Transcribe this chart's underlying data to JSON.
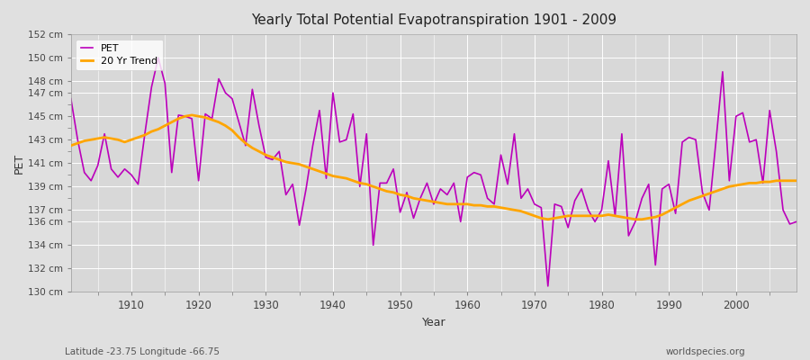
{
  "title": "Yearly Total Potential Evapotranspiration 1901 - 2009",
  "xlabel": "Year",
  "ylabel": "PET",
  "subtitle_left": "Latitude -23.75 Longitude -66.75",
  "subtitle_right": "worldspecies.org",
  "ylim": [
    130,
    152
  ],
  "xlim": [
    1901,
    2009
  ],
  "ytick_labels": [
    "130 cm",
    "132 cm",
    "134 cm",
    "136 cm",
    "137 cm",
    "139 cm",
    "141 cm",
    "143 cm",
    "145 cm",
    "147 cm",
    "148 cm",
    "150 cm",
    "152 cm"
  ],
  "ytick_values": [
    130,
    132,
    134,
    136,
    137,
    139,
    141,
    143,
    145,
    147,
    148,
    150,
    152
  ],
  "pet_color": "#bb00bb",
  "trend_color": "#ffa500",
  "bg_color": "#e0e0e0",
  "plot_bg_color": "#d8d8d8",
  "legend_labels": [
    "PET",
    "20 Yr Trend"
  ],
  "years": [
    1901,
    1902,
    1903,
    1904,
    1905,
    1906,
    1907,
    1908,
    1909,
    1910,
    1911,
    1912,
    1913,
    1914,
    1915,
    1916,
    1917,
    1918,
    1919,
    1920,
    1921,
    1922,
    1923,
    1924,
    1925,
    1926,
    1927,
    1928,
    1929,
    1930,
    1931,
    1932,
    1933,
    1934,
    1935,
    1936,
    1937,
    1938,
    1939,
    1940,
    1941,
    1942,
    1943,
    1944,
    1945,
    1946,
    1947,
    1948,
    1949,
    1950,
    1951,
    1952,
    1953,
    1954,
    1955,
    1956,
    1957,
    1958,
    1959,
    1960,
    1961,
    1962,
    1963,
    1964,
    1965,
    1966,
    1967,
    1968,
    1969,
    1970,
    1971,
    1972,
    1973,
    1974,
    1975,
    1976,
    1977,
    1978,
    1979,
    1980,
    1981,
    1982,
    1983,
    1984,
    1985,
    1986,
    1987,
    1988,
    1989,
    1990,
    1991,
    1992,
    1993,
    1994,
    1995,
    1996,
    1997,
    1998,
    1999,
    2000,
    2001,
    2002,
    2003,
    2004,
    2005,
    2006,
    2007,
    2008,
    2009
  ],
  "pet": [
    146.5,
    143.0,
    140.2,
    139.5,
    140.8,
    143.5,
    140.5,
    139.8,
    140.5,
    140.0,
    139.2,
    143.5,
    147.5,
    150.0,
    147.8,
    140.2,
    145.1,
    145.0,
    144.8,
    139.5,
    145.2,
    144.8,
    148.2,
    147.0,
    146.5,
    144.5,
    142.5,
    147.3,
    144.2,
    141.5,
    141.3,
    142.0,
    138.3,
    139.2,
    135.7,
    138.8,
    142.5,
    145.5,
    139.7,
    147.0,
    142.8,
    143.0,
    145.2,
    139.0,
    143.5,
    134.0,
    139.3,
    139.3,
    140.5,
    136.8,
    138.5,
    136.3,
    138.0,
    139.3,
    137.5,
    138.8,
    138.3,
    139.3,
    136.0,
    139.8,
    140.2,
    140.0,
    138.0,
    137.5,
    141.7,
    139.2,
    143.5,
    138.0,
    138.8,
    137.5,
    137.2,
    130.5,
    137.5,
    137.3,
    135.5,
    137.8,
    138.8,
    137.0,
    136.0,
    137.0,
    141.2,
    136.5,
    143.5,
    134.8,
    136.0,
    138.0,
    139.2,
    132.3,
    138.8,
    139.2,
    136.7,
    142.8,
    143.2,
    143.0,
    138.5,
    137.0,
    142.8,
    148.8,
    139.5,
    145.0,
    145.3,
    142.8,
    143.0,
    139.3,
    145.5,
    142.0,
    137.0,
    135.8,
    136.0
  ],
  "trend": [
    142.5,
    142.7,
    142.9,
    143.0,
    143.1,
    143.2,
    143.1,
    143.0,
    142.8,
    143.0,
    143.2,
    143.4,
    143.7,
    143.9,
    144.2,
    144.5,
    144.8,
    145.0,
    145.1,
    145.0,
    144.9,
    144.7,
    144.5,
    144.2,
    143.8,
    143.2,
    142.7,
    142.3,
    142.0,
    141.7,
    141.5,
    141.3,
    141.1,
    141.0,
    140.9,
    140.7,
    140.5,
    140.3,
    140.1,
    139.9,
    139.8,
    139.7,
    139.5,
    139.3,
    139.2,
    139.0,
    138.8,
    138.6,
    138.5,
    138.3,
    138.2,
    138.0,
    137.9,
    137.8,
    137.7,
    137.6,
    137.5,
    137.5,
    137.5,
    137.5,
    137.4,
    137.4,
    137.3,
    137.3,
    137.2,
    137.1,
    137.0,
    136.9,
    136.7,
    136.5,
    136.3,
    136.2,
    136.3,
    136.4,
    136.5,
    136.5,
    136.5,
    136.5,
    136.5,
    136.5,
    136.6,
    136.5,
    136.4,
    136.3,
    136.2,
    136.2,
    136.3,
    136.4,
    136.6,
    136.9,
    137.2,
    137.5,
    137.8,
    138.0,
    138.2,
    138.4,
    138.6,
    138.8,
    139.0,
    139.1,
    139.2,
    139.3,
    139.3,
    139.4,
    139.4,
    139.5,
    139.5,
    139.5,
    139.5
  ]
}
